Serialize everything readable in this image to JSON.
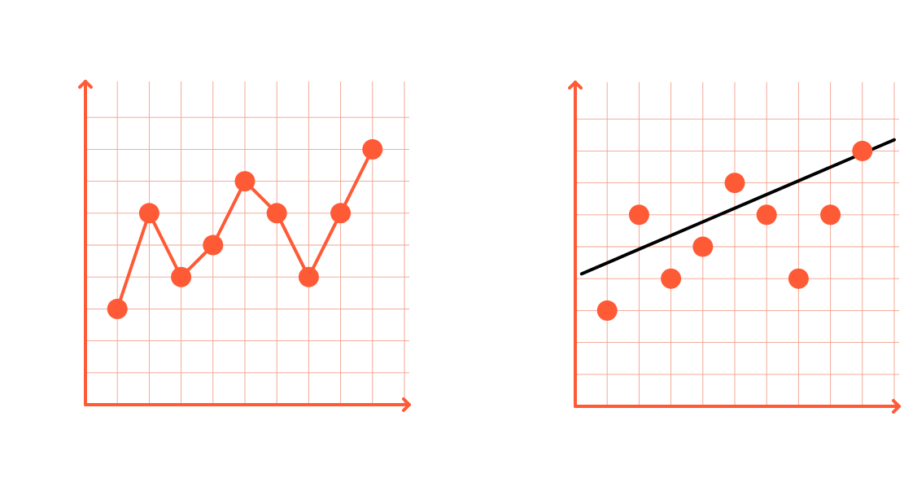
{
  "colors": {
    "accent": "#FF5A36",
    "grid": "#F2A08E",
    "trend": "#000000",
    "background": "#FFFFFF"
  },
  "chart_data": [
    {
      "type": "line",
      "title": "",
      "xlabel": "",
      "ylabel": "",
      "grid": true,
      "legend": "none",
      "xlim": [
        0,
        10
      ],
      "ylim": [
        0,
        10
      ],
      "x": [
        1,
        2,
        3,
        4,
        5,
        6,
        7,
        8,
        9
      ],
      "series": [
        {
          "values": [
            3,
            6,
            4,
            5,
            7,
            6,
            4,
            6,
            8
          ]
        }
      ]
    },
    {
      "type": "scatter",
      "title": "",
      "xlabel": "",
      "ylabel": "",
      "grid": true,
      "legend": "none",
      "xlim": [
        0,
        10
      ],
      "ylim": [
        0,
        10
      ],
      "x": [
        1,
        2,
        3,
        4,
        5,
        6,
        7,
        8,
        9
      ],
      "series": [
        {
          "values": [
            3,
            6,
            4,
            5,
            7,
            6,
            4,
            6,
            8
          ]
        }
      ],
      "trendline": {
        "x": [
          0.2,
          10.0
        ],
        "y": [
          4.15,
          8.35
        ]
      }
    }
  ]
}
